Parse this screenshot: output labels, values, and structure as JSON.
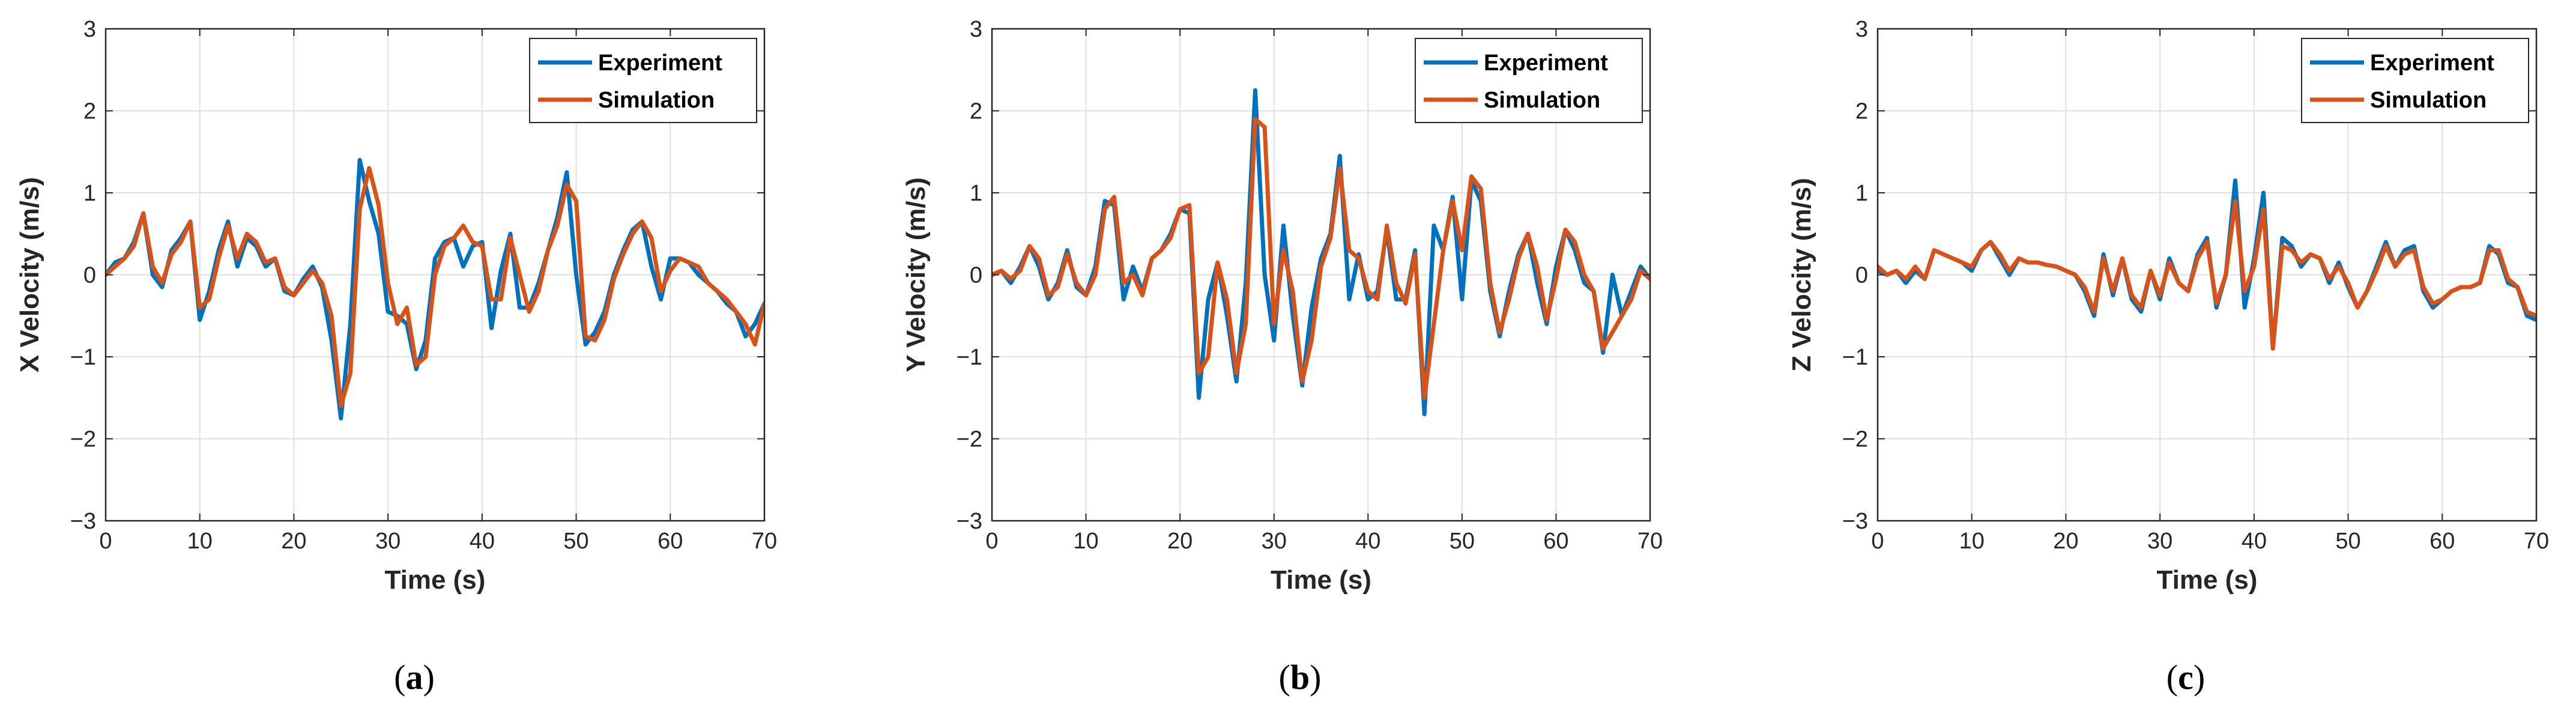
{
  "chart_data": [
    {
      "type": "line",
      "caption_open": "(",
      "caption_letter": "a",
      "caption_close": ")",
      "xlabel": "Time (s)",
      "ylabel": "X Velocity (m/s)",
      "xlim": [
        0,
        70
      ],
      "ylim": [
        -3,
        3
      ],
      "xticks": [
        0,
        10,
        20,
        30,
        40,
        50,
        60,
        70
      ],
      "yticks": [
        -3,
        -2,
        -1,
        0,
        1,
        2,
        3
      ],
      "xtick_labels": [
        "0",
        "10",
        "20",
        "30",
        "40",
        "50",
        "60",
        "70"
      ],
      "ytick_labels": [
        "−3",
        "−2",
        "−1",
        "0",
        "1",
        "2",
        "3"
      ],
      "grid": true,
      "legend_position": "top-right",
      "series": [
        {
          "name": "Experiment",
          "color": "#0072BD",
          "x": [
            0,
            1,
            2,
            3,
            4,
            5,
            6,
            7,
            8,
            9,
            10,
            11,
            12,
            13,
            14,
            15,
            16,
            17,
            18,
            19,
            20,
            21,
            22,
            23,
            24,
            25,
            26,
            27,
            28,
            29,
            30,
            31,
            32,
            33,
            34,
            35,
            36,
            37,
            38,
            39,
            40,
            41,
            42,
            43,
            44,
            45,
            46,
            47,
            48,
            49,
            50,
            51,
            52,
            53,
            54,
            55,
            56,
            57,
            58,
            59,
            60,
            61,
            62,
            63,
            64,
            65,
            66,
            67,
            68,
            69,
            70
          ],
          "y": [
            0.0,
            0.15,
            0.2,
            0.4,
            0.75,
            0.0,
            -0.15,
            0.3,
            0.45,
            0.65,
            -0.55,
            -0.2,
            0.3,
            0.65,
            0.1,
            0.45,
            0.35,
            0.1,
            0.2,
            -0.2,
            -0.25,
            -0.05,
            0.1,
            -0.15,
            -0.8,
            -1.75,
            -0.6,
            1.4,
            0.9,
            0.5,
            -0.45,
            -0.5,
            -0.6,
            -1.15,
            -0.8,
            0.2,
            0.4,
            0.45,
            0.1,
            0.35,
            0.4,
            -0.65,
            0.05,
            0.5,
            -0.4,
            -0.4,
            -0.1,
            0.3,
            0.7,
            1.25,
            0.0,
            -0.85,
            -0.7,
            -0.45,
            0.0,
            0.3,
            0.55,
            0.65,
            0.1,
            -0.3,
            0.2,
            0.2,
            0.15,
            0.0,
            -0.1,
            -0.2,
            -0.35,
            -0.45,
            -0.75,
            -0.6,
            -0.35
          ]
        },
        {
          "name": "Simulation",
          "color": "#D95319",
          "x": [
            0,
            1,
            2,
            3,
            4,
            5,
            6,
            7,
            8,
            9,
            10,
            11,
            12,
            13,
            14,
            15,
            16,
            17,
            18,
            19,
            20,
            21,
            22,
            23,
            24,
            25,
            26,
            27,
            28,
            29,
            30,
            31,
            32,
            33,
            34,
            35,
            36,
            37,
            38,
            39,
            40,
            41,
            42,
            43,
            44,
            45,
            46,
            47,
            48,
            49,
            50,
            51,
            52,
            53,
            54,
            55,
            56,
            57,
            58,
            59,
            60,
            61,
            62,
            63,
            64,
            65,
            66,
            67,
            68,
            69,
            70
          ],
          "y": [
            0.0,
            0.1,
            0.2,
            0.35,
            0.75,
            0.1,
            -0.1,
            0.25,
            0.4,
            0.65,
            -0.4,
            -0.3,
            0.2,
            0.6,
            0.2,
            0.5,
            0.4,
            0.15,
            0.2,
            -0.15,
            -0.25,
            -0.1,
            0.05,
            -0.1,
            -0.5,
            -1.6,
            -1.2,
            0.8,
            1.3,
            0.85,
            -0.1,
            -0.6,
            -0.4,
            -1.1,
            -1.0,
            0.0,
            0.35,
            0.45,
            0.6,
            0.4,
            0.35,
            -0.3,
            -0.3,
            0.45,
            0.0,
            -0.45,
            -0.2,
            0.3,
            0.6,
            1.1,
            0.9,
            -0.75,
            -0.8,
            -0.55,
            -0.05,
            0.25,
            0.5,
            0.65,
            0.45,
            -0.2,
            0.05,
            0.2,
            0.15,
            0.1,
            -0.1,
            -0.2,
            -0.3,
            -0.45,
            -0.6,
            -0.85,
            -0.35
          ]
        }
      ]
    },
    {
      "type": "line",
      "caption_open": "(",
      "caption_letter": "b",
      "caption_close": ")",
      "xlabel": "Time (s)",
      "ylabel": "Y Velocity (m/s)",
      "xlim": [
        0,
        70
      ],
      "ylim": [
        -3,
        3
      ],
      "xticks": [
        0,
        10,
        20,
        30,
        40,
        50,
        60,
        70
      ],
      "yticks": [
        -3,
        -2,
        -1,
        0,
        1,
        2,
        3
      ],
      "xtick_labels": [
        "0",
        "10",
        "20",
        "30",
        "40",
        "50",
        "60",
        "70"
      ],
      "ytick_labels": [
        "−3",
        "−2",
        "−1",
        "0",
        "1",
        "2",
        "3"
      ],
      "grid": true,
      "legend_position": "top-right",
      "series": [
        {
          "name": "Experiment",
          "color": "#0072BD",
          "x": [
            0,
            1,
            2,
            3,
            4,
            5,
            6,
            7,
            8,
            9,
            10,
            11,
            12,
            13,
            14,
            15,
            16,
            17,
            18,
            19,
            20,
            21,
            22,
            23,
            24,
            25,
            26,
            27,
            28,
            29,
            30,
            31,
            32,
            33,
            34,
            35,
            36,
            37,
            38,
            39,
            40,
            41,
            42,
            43,
            44,
            45,
            46,
            47,
            48,
            49,
            50,
            51,
            52,
            53,
            54,
            55,
            56,
            57,
            58,
            59,
            60,
            61,
            62,
            63,
            64,
            65,
            66,
            67,
            68,
            69,
            70
          ],
          "y": [
            0.0,
            0.05,
            -0.1,
            0.1,
            0.35,
            0.1,
            -0.3,
            -0.1,
            0.3,
            -0.15,
            -0.25,
            0.1,
            0.9,
            0.85,
            -0.3,
            0.1,
            -0.2,
            0.2,
            0.3,
            0.5,
            0.8,
            0.75,
            -1.5,
            -0.3,
            0.15,
            -0.5,
            -1.3,
            -0.1,
            2.25,
            0.0,
            -0.8,
            0.6,
            -0.5,
            -1.35,
            -0.4,
            0.2,
            0.5,
            1.45,
            -0.3,
            0.25,
            -0.3,
            -0.2,
            0.55,
            -0.3,
            -0.3,
            0.3,
            -1.7,
            0.6,
            0.3,
            0.95,
            -0.3,
            1.15,
            0.9,
            -0.2,
            -0.75,
            -0.2,
            0.25,
            0.5,
            -0.1,
            -0.6,
            0.1,
            0.55,
            0.3,
            -0.1,
            -0.2,
            -0.95,
            0.0,
            -0.5,
            -0.2,
            0.1,
            -0.05
          ]
        },
        {
          "name": "Simulation",
          "color": "#D95319",
          "x": [
            0,
            1,
            2,
            3,
            4,
            5,
            6,
            7,
            8,
            9,
            10,
            11,
            12,
            13,
            14,
            15,
            16,
            17,
            18,
            19,
            20,
            21,
            22,
            23,
            24,
            25,
            26,
            27,
            28,
            29,
            30,
            31,
            32,
            33,
            34,
            35,
            36,
            37,
            38,
            39,
            40,
            41,
            42,
            43,
            44,
            45,
            46,
            47,
            48,
            49,
            50,
            51,
            52,
            53,
            54,
            55,
            56,
            57,
            58,
            59,
            60,
            61,
            62,
            63,
            64,
            65,
            66,
            67,
            68,
            69,
            70
          ],
          "y": [
            0.0,
            0.05,
            -0.05,
            0.05,
            0.35,
            0.2,
            -0.25,
            -0.15,
            0.25,
            -0.1,
            -0.25,
            0.0,
            0.8,
            0.95,
            -0.1,
            0.0,
            -0.25,
            0.2,
            0.3,
            0.45,
            0.8,
            0.85,
            -1.2,
            -1.0,
            0.15,
            -0.3,
            -1.2,
            -0.6,
            1.9,
            1.8,
            -0.6,
            0.3,
            -0.2,
            -1.3,
            -0.8,
            0.1,
            0.45,
            1.3,
            0.3,
            0.2,
            -0.2,
            -0.3,
            0.6,
            -0.1,
            -0.35,
            0.25,
            -1.5,
            -0.6,
            0.3,
            0.9,
            0.3,
            1.2,
            1.05,
            -0.1,
            -0.7,
            -0.3,
            0.2,
            0.5,
            0.1,
            -0.55,
            -0.05,
            0.55,
            0.4,
            0.0,
            -0.2,
            -0.9,
            -0.7,
            -0.5,
            -0.3,
            0.05,
            -0.05
          ]
        }
      ]
    },
    {
      "type": "line",
      "caption_open": "(",
      "caption_letter": "c",
      "caption_close": ")",
      "xlabel": "Time (s)",
      "ylabel": "Z Velocity (m/s)",
      "xlim": [
        0,
        70
      ],
      "ylim": [
        -3,
        3
      ],
      "xticks": [
        0,
        10,
        20,
        30,
        40,
        50,
        60,
        70
      ],
      "yticks": [
        -3,
        -2,
        -1,
        0,
        1,
        2,
        3
      ],
      "xtick_labels": [
        "0",
        "10",
        "20",
        "30",
        "40",
        "50",
        "60",
        "70"
      ],
      "ytick_labels": [
        "−3",
        "−2",
        "−1",
        "0",
        "1",
        "2",
        "3"
      ],
      "grid": true,
      "legend_position": "top-right",
      "series": [
        {
          "name": "Experiment",
          "color": "#0072BD",
          "x": [
            0,
            1,
            2,
            3,
            4,
            5,
            6,
            7,
            8,
            9,
            10,
            11,
            12,
            13,
            14,
            15,
            16,
            17,
            18,
            19,
            20,
            21,
            22,
            23,
            24,
            25,
            26,
            27,
            28,
            29,
            30,
            31,
            32,
            33,
            34,
            35,
            36,
            37,
            38,
            39,
            40,
            41,
            42,
            43,
            44,
            45,
            46,
            47,
            48,
            49,
            50,
            51,
            52,
            53,
            54,
            55,
            56,
            57,
            58,
            59,
            60,
            61,
            62,
            63,
            64,
            65,
            66,
            67,
            68,
            69,
            70
          ],
          "y": [
            0.05,
            0.0,
            0.05,
            -0.1,
            0.05,
            -0.05,
            0.3,
            0.25,
            0.2,
            0.15,
            0.05,
            0.3,
            0.4,
            0.2,
            0.0,
            0.2,
            0.15,
            0.15,
            0.12,
            0.1,
            0.05,
            0.0,
            -0.2,
            -0.5,
            0.25,
            -0.25,
            0.2,
            -0.3,
            -0.45,
            0.05,
            -0.3,
            0.2,
            -0.1,
            -0.2,
            0.25,
            0.45,
            -0.4,
            0.0,
            1.15,
            -0.4,
            0.2,
            1.0,
            -0.9,
            0.45,
            0.35,
            0.1,
            0.25,
            0.2,
            -0.1,
            0.15,
            -0.15,
            -0.4,
            -0.2,
            0.1,
            0.4,
            0.1,
            0.3,
            0.35,
            -0.2,
            -0.4,
            -0.3,
            -0.2,
            -0.15,
            -0.15,
            -0.1,
            0.35,
            0.25,
            -0.1,
            -0.15,
            -0.5,
            -0.55
          ]
        },
        {
          "name": "Simulation",
          "color": "#D95319",
          "x": [
            0,
            1,
            2,
            3,
            4,
            5,
            6,
            7,
            8,
            9,
            10,
            11,
            12,
            13,
            14,
            15,
            16,
            17,
            18,
            19,
            20,
            21,
            22,
            23,
            24,
            25,
            26,
            27,
            28,
            29,
            30,
            31,
            32,
            33,
            34,
            35,
            36,
            37,
            38,
            39,
            40,
            41,
            42,
            43,
            44,
            45,
            46,
            47,
            48,
            49,
            50,
            51,
            52,
            53,
            54,
            55,
            56,
            57,
            58,
            59,
            60,
            61,
            62,
            63,
            64,
            65,
            66,
            67,
            68,
            69,
            70
          ],
          "y": [
            0.1,
            0.0,
            0.05,
            -0.05,
            0.1,
            -0.05,
            0.3,
            0.25,
            0.2,
            0.15,
            0.1,
            0.3,
            0.4,
            0.25,
            0.05,
            0.2,
            0.15,
            0.15,
            0.12,
            0.1,
            0.05,
            0.0,
            -0.15,
            -0.45,
            0.2,
            -0.2,
            0.2,
            -0.25,
            -0.4,
            0.05,
            -0.25,
            0.15,
            -0.1,
            -0.2,
            0.2,
            0.4,
            -0.35,
            0.0,
            0.9,
            -0.2,
            0.1,
            0.8,
            -0.9,
            0.35,
            0.3,
            0.15,
            0.25,
            0.2,
            -0.05,
            0.1,
            -0.1,
            -0.4,
            -0.2,
            0.05,
            0.35,
            0.1,
            0.25,
            0.3,
            -0.15,
            -0.35,
            -0.3,
            -0.2,
            -0.15,
            -0.15,
            -0.1,
            0.3,
            0.3,
            -0.05,
            -0.15,
            -0.45,
            -0.5
          ]
        }
      ]
    }
  ]
}
